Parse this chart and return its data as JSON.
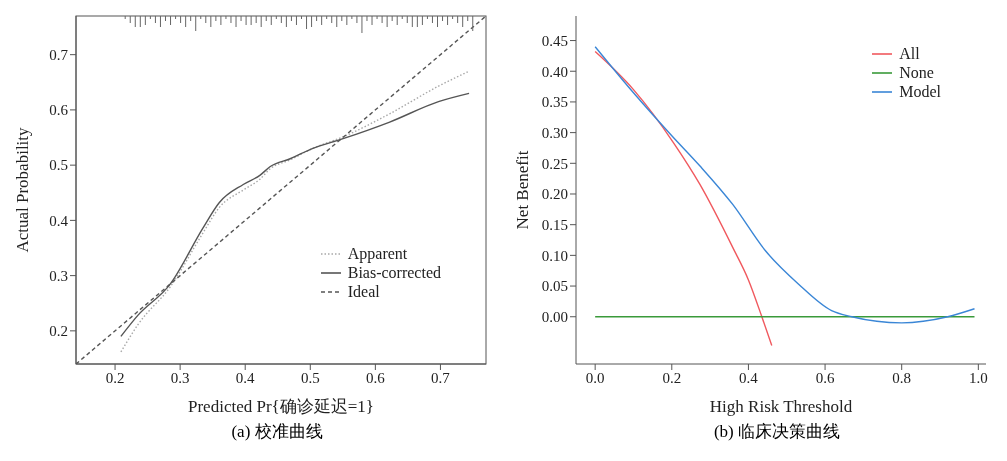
{
  "chart_data": [
    {
      "type": "line",
      "xlabel": "Predicted Pr{确诊延迟=1}",
      "ylabel": "Actual Probability",
      "annotations": [
        "(a) 校准曲线"
      ],
      "xlim": [
        0.14,
        0.77
      ],
      "ylim": [
        0.14,
        0.77
      ],
      "xticks": [
        0.2,
        0.3,
        0.4,
        0.5,
        0.6,
        0.7
      ],
      "yticks": [
        0.2,
        0.3,
        0.4,
        0.5,
        0.6,
        0.7
      ],
      "legend": "bottom right",
      "series": [
        {
          "name": "Apparent",
          "color": "#a8a8a8",
          "line_style": "dotted",
          "x": [
            0.209,
            0.235,
            0.285,
            0.335,
            0.36,
            0.397,
            0.423,
            0.438,
            0.47,
            0.503,
            0.548,
            0.622,
            0.697,
            0.744
          ],
          "values": [
            0.162,
            0.211,
            0.28,
            0.377,
            0.423,
            0.455,
            0.475,
            0.493,
            0.51,
            0.53,
            0.55,
            0.593,
            0.643,
            0.67
          ]
        },
        {
          "name": "Bias-corrected",
          "color": "#555555",
          "line_style": "solid",
          "x": [
            0.209,
            0.235,
            0.285,
            0.335,
            0.36,
            0.397,
            0.423,
            0.438,
            0.47,
            0.503,
            0.548,
            0.622,
            0.697,
            0.744
          ],
          "values": [
            0.19,
            0.228,
            0.285,
            0.386,
            0.432,
            0.465,
            0.482,
            0.497,
            0.512,
            0.53,
            0.547,
            0.578,
            0.615,
            0.63
          ]
        },
        {
          "name": "Ideal",
          "color": "#555555",
          "line_style": "dashed",
          "x": [
            0.14,
            0.77
          ],
          "values": [
            0.14,
            0.77
          ]
        }
      ]
    },
    {
      "type": "line",
      "xlabel": "High Risk Threshold",
      "ylabel": "Net Benefit",
      "annotations": [
        "(b) 临床决策曲线"
      ],
      "xlim": [
        -0.05,
        1.02
      ],
      "ylim": [
        -0.077,
        0.49
      ],
      "xticks": [
        {
          "value": 0,
          "label": "0.0"
        },
        0.2,
        0.4,
        0.6,
        0.8,
        {
          "value": 1,
          "label": "1.0"
        }
      ],
      "yticks": [
        {
          "value": 0,
          "label": "0.00"
        },
        {
          "value": 0.05,
          "label": "0.05"
        },
        {
          "value": 0.1,
          "label": "0.10"
        },
        {
          "value": 0.15,
          "label": "0.15"
        },
        {
          "value": 0.2,
          "label": "0.20"
        },
        {
          "value": 0.25,
          "label": "0.25"
        },
        {
          "value": 0.3,
          "label": "0.30"
        },
        {
          "value": 0.35,
          "label": "0.35"
        },
        {
          "value": 0.4,
          "label": "0.40"
        },
        {
          "value": 0.45,
          "label": "0.45"
        }
      ],
      "legend": "top right",
      "series": [
        {
          "name": "All",
          "color": "#f0595e",
          "x": [
            0,
            0.1,
            0.205,
            0.273,
            0.359,
            0.4,
            0.435,
            0.461
          ],
          "values": [
            0.432,
            0.37,
            0.283,
            0.216,
            0.113,
            0.06,
            0,
            -0.047
          ]
        },
        {
          "name": "None",
          "color": "#3a9a3a",
          "x": [
            0,
            0.99
          ],
          "values": [
            0,
            0
          ]
        },
        {
          "name": "Model",
          "color": "#3a86d6",
          "x": [
            0,
            0.1,
            0.2,
            0.273,
            0.359,
            0.445,
            0.531,
            0.617,
            0.67,
            0.8,
            0.92,
            0.99
          ],
          "values": [
            0.44,
            0.365,
            0.295,
            0.246,
            0.183,
            0.107,
            0.053,
            0.01,
            0,
            -0.01,
            0,
            0.013
          ]
        }
      ]
    }
  ]
}
